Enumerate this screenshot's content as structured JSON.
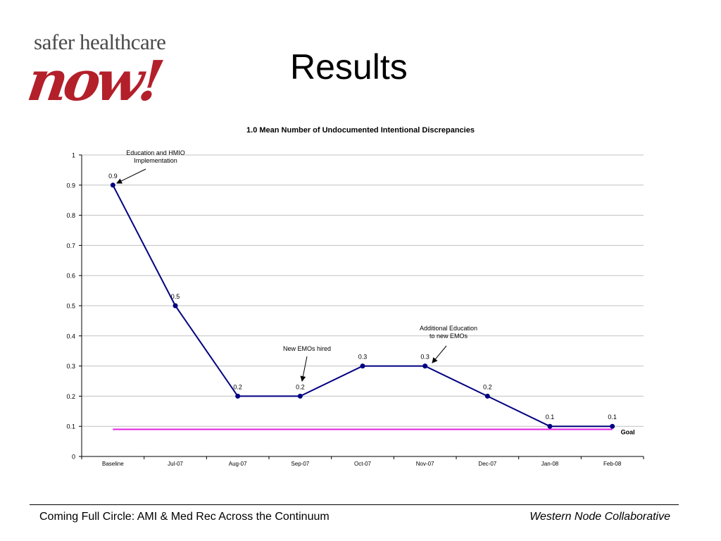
{
  "logo": {
    "line1": "safer healthcare",
    "line2": "now!"
  },
  "slide_title": "Results",
  "footer": {
    "left": "Coming Full Circle:  AMI & Med Rec Across the Continuum",
    "right": "Western Node Collaborative"
  },
  "colors": {
    "series": "#000080",
    "goal": "#e020e0",
    "grid": "#c0c0c0"
  },
  "chart_data": {
    "type": "line",
    "title": "1.0 Mean Number of Undocumented Intentional Discrepancies",
    "xlabel": "",
    "ylabel": "",
    "categories": [
      "Baseline",
      "Jul-07",
      "Aug-07",
      "Sep-07",
      "Oct-07",
      "Nov-07",
      "Dec-07",
      "Jan-08",
      "Feb-08"
    ],
    "series": [
      {
        "values": [
          0.9,
          0.5,
          0.2,
          0.2,
          0.3,
          0.3,
          0.2,
          0.1,
          0.1
        ]
      }
    ],
    "data_labels": [
      "0.9",
      "0.5",
      "0.2",
      "0.2",
      "0.3",
      "0.3",
      "0.2",
      "0.1",
      "0.1"
    ],
    "goal": {
      "label": "Goal",
      "value": 0.09
    },
    "ylim": [
      0,
      1
    ],
    "yticks": [
      0,
      0.1,
      0.2,
      0.3,
      0.4,
      0.5,
      0.6,
      0.7,
      0.8,
      0.9,
      1
    ],
    "ytick_labels": [
      "0",
      "0.1",
      "0.2",
      "0.3",
      "0.4",
      "0.5",
      "0.6",
      "0.7",
      "0.8",
      "0.9",
      "1"
    ],
    "grid": true,
    "annotations": [
      {
        "lines": [
          "Education  and HMIO",
          "Implementation"
        ],
        "category_index": 0
      },
      {
        "lines": [
          "New EMOs hired"
        ],
        "category_index": 3
      },
      {
        "lines": [
          "Additional Education",
          "to new EMOs"
        ],
        "category_index": 5
      }
    ]
  }
}
